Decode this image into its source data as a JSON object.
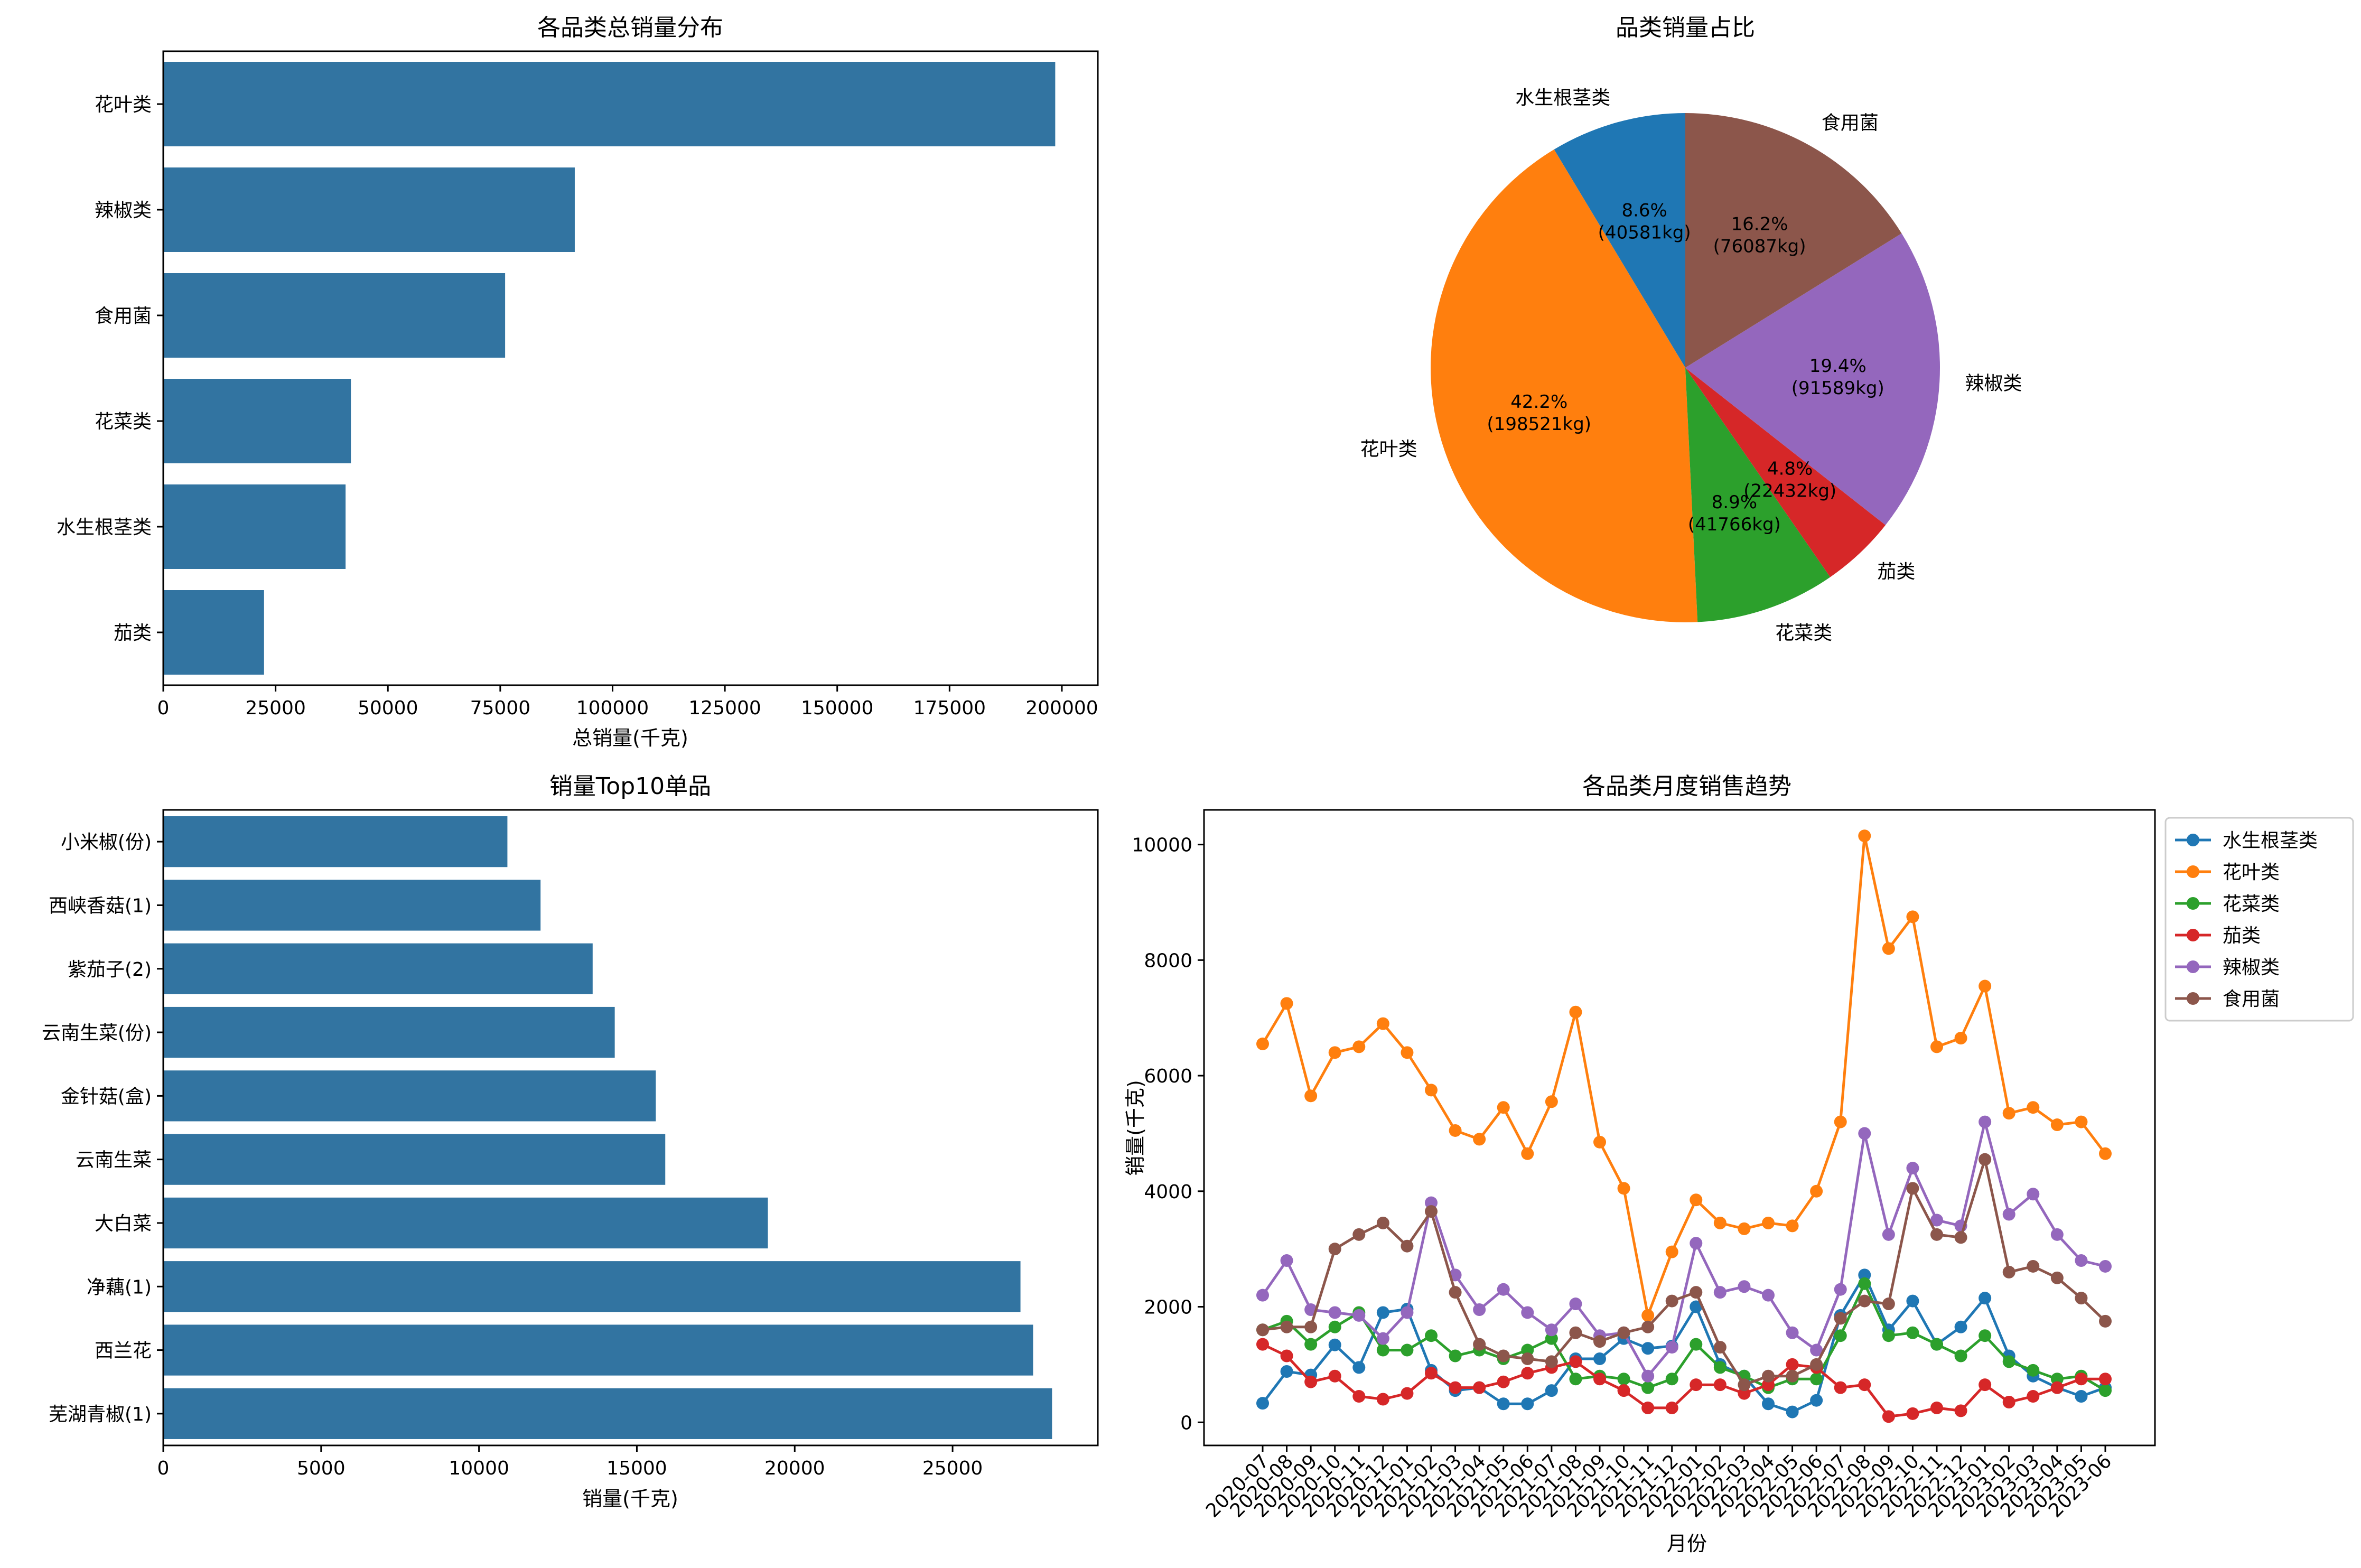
{
  "chart_data": [
    {
      "type": "bar",
      "orientation": "horizontal",
      "title": "各品类总销量分布",
      "xlabel": "总销量(千克)",
      "ylabel": "",
      "categories": [
        "花叶类",
        "辣椒类",
        "食用菌",
        "花菜类",
        "水生根茎类",
        "茄类"
      ],
      "values": [
        198521,
        91589,
        76087,
        41766,
        40581,
        22432
      ],
      "xlim": [
        0,
        208000
      ],
      "xticks": [
        0,
        25000,
        50000,
        75000,
        100000,
        125000,
        150000,
        175000,
        200000
      ],
      "grid": false,
      "color": "#3274a1"
    },
    {
      "type": "pie",
      "title": "品类销量占比",
      "labels": [
        "水生根茎类",
        "花叶类",
        "花菜类",
        "茄类",
        "辣椒类",
        "食用菌"
      ],
      "values": [
        40581,
        198521,
        41766,
        22432,
        91589,
        76087
      ],
      "percent_labels": [
        "8.6%",
        "42.2%",
        "8.9%",
        "4.8%",
        "19.4%",
        "16.2%"
      ],
      "value_labels": [
        "(40581kg)",
        "(198521kg)",
        "(41766kg)",
        "(22432kg)",
        "(91589kg)",
        "(76087kg)"
      ],
      "colors": [
        "#1f77b4",
        "#ff7f0e",
        "#2ca02c",
        "#d62728",
        "#9467bd",
        "#8c564b"
      ],
      "start_angle": "top",
      "direction": "counterclockwise"
    },
    {
      "type": "bar",
      "orientation": "horizontal",
      "title": "销量Top10单品",
      "xlabel": "销量(千克)",
      "ylabel": "",
      "categories": [
        "小米椒(份)",
        "西峡香菇(1)",
        "紫茄子(2)",
        "云南生菜(份)",
        "金针菇(盒)",
        "云南生菜",
        "大白菜",
        "净藕(1)",
        "西兰花",
        "芜湖青椒(1)"
      ],
      "values": [
        10900,
        11950,
        13600,
        14300,
        15600,
        15900,
        19150,
        27150,
        27550,
        28150
      ],
      "xlim": [
        0,
        29600
      ],
      "xticks": [
        0,
        5000,
        10000,
        15000,
        20000,
        25000
      ],
      "grid": false,
      "color": "#3274a1"
    },
    {
      "type": "line",
      "title": "各品类月度销售趋势",
      "xlabel": "月份",
      "ylabel": "销量(千克)",
      "x": [
        "2020-07",
        "2020-08",
        "2020-09",
        "2020-10",
        "2020-11",
        "2020-12",
        "2021-01",
        "2021-02",
        "2021-03",
        "2021-04",
        "2021-05",
        "2021-06",
        "2021-07",
        "2021-08",
        "2021-09",
        "2021-10",
        "2021-11",
        "2021-12",
        "2022-01",
        "2022-02",
        "2022-03",
        "2022-04",
        "2022-05",
        "2022-06",
        "2022-07",
        "2022-08",
        "2022-09",
        "2022-10",
        "2022-11",
        "2022-12",
        "2023-01",
        "2023-02",
        "2023-03",
        "2023-04",
        "2023-05",
        "2023-06"
      ],
      "ylim": [
        -400,
        10600
      ],
      "yticks": [
        0,
        2000,
        4000,
        6000,
        8000,
        10000
      ],
      "legend_position": "outside upper right",
      "series": [
        {
          "name": "水生根茎类",
          "color": "#1f77b4",
          "values": [
            330,
            880,
            820,
            1340,
            950,
            1900,
            1960,
            900,
            550,
            600,
            320,
            320,
            550,
            1100,
            1100,
            1450,
            1280,
            1320,
            2000,
            1000,
            800,
            320,
            180,
            380,
            1850,
            2550,
            1600,
            2100,
            1350,
            1650,
            2150,
            1150,
            800,
            600,
            450,
            600
          ]
        },
        {
          "name": "花叶类",
          "color": "#ff7f0e",
          "values": [
            6550,
            7250,
            5650,
            6400,
            6500,
            6900,
            6400,
            5750,
            5050,
            4900,
            5450,
            4650,
            5550,
            7100,
            4850,
            4050,
            1850,
            2950,
            3850,
            3450,
            3350,
            3450,
            3400,
            4000,
            5200,
            10150,
            8200,
            8750,
            6500,
            6650,
            7550,
            5350,
            5450,
            5150,
            5200,
            4650
          ]
        },
        {
          "name": "花菜类",
          "color": "#2ca02c",
          "values": [
            1600,
            1750,
            1350,
            1650,
            1900,
            1250,
            1250,
            1500,
            1150,
            1250,
            1100,
            1250,
            1450,
            750,
            800,
            750,
            600,
            750,
            1350,
            950,
            800,
            600,
            750,
            750,
            1500,
            2400,
            1500,
            1550,
            1350,
            1150,
            1500,
            1050,
            900,
            750,
            800,
            550
          ]
        },
        {
          "name": "茄类",
          "color": "#d62728",
          "values": [
            1350,
            1150,
            700,
            800,
            450,
            400,
            500,
            850,
            600,
            600,
            700,
            850,
            950,
            1050,
            750,
            550,
            250,
            250,
            650,
            650,
            500,
            650,
            1000,
            950,
            600,
            650,
            100,
            150,
            250,
            200,
            650,
            350,
            450,
            600,
            750,
            750
          ]
        },
        {
          "name": "辣椒类",
          "color": "#9467bd",
          "values": [
            2200,
            2800,
            1950,
            1900,
            1850,
            1450,
            1900,
            3800,
            2550,
            1950,
            2300,
            1900,
            1600,
            2050,
            1500,
            1550,
            800,
            1300,
            3100,
            2250,
            2350,
            2200,
            1550,
            1250,
            2300,
            5000,
            3250,
            4400,
            3500,
            3400,
            5200,
            3600,
            3950,
            3250,
            2800,
            2700
          ]
        },
        {
          "name": "食用菌",
          "color": "#8c564b",
          "values": [
            1600,
            1650,
            1650,
            3000,
            3250,
            3450,
            3050,
            3650,
            2250,
            1350,
            1150,
            1100,
            1050,
            1550,
            1400,
            1550,
            1650,
            2100,
            2250,
            1300,
            650,
            800,
            800,
            1000,
            1800,
            2100,
            2050,
            4050,
            3250,
            3200,
            4550,
            2600,
            2700,
            2500,
            2150,
            1750
          ]
        }
      ]
    }
  ]
}
